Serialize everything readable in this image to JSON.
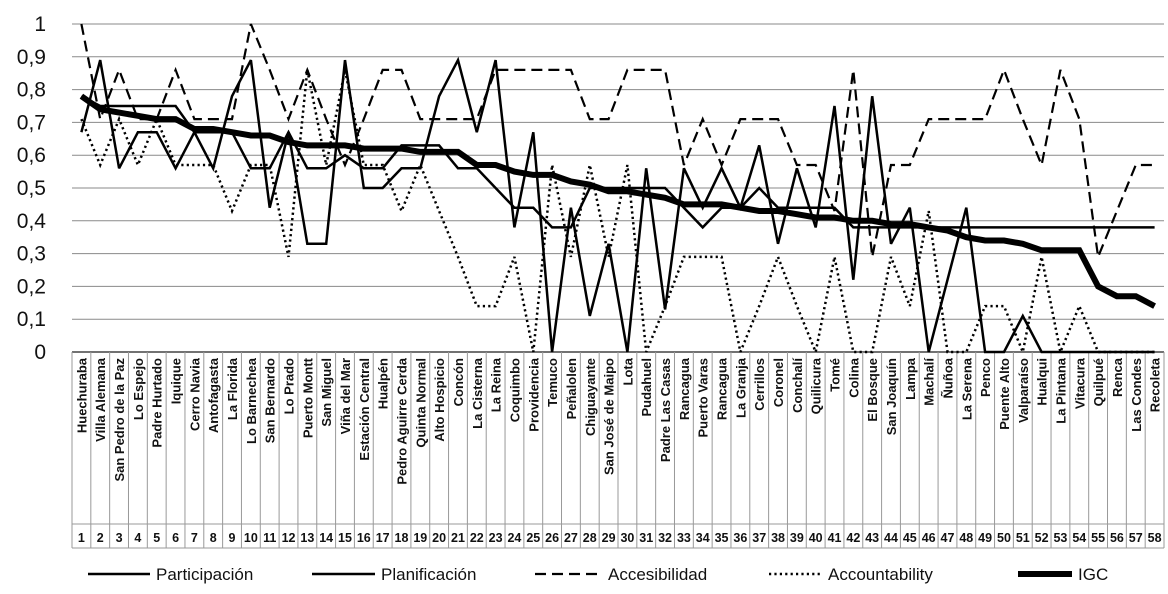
{
  "chart_data": {
    "type": "line",
    "title": "",
    "xlabel": "",
    "ylabel": "",
    "ylim": [
      0,
      1
    ],
    "y_ticks": [
      "0",
      "0,1",
      "0,2",
      "0,3",
      "0,4",
      "0,5",
      "0,6",
      "0,7",
      "0,8",
      "0,9",
      "1"
    ],
    "grid": true,
    "legend_position": "bottom",
    "categories": [
      "Huechuraba",
      "Villa Alemana",
      "San Pedro de la Paz",
      "Lo Espejo",
      "Padre Hurtado",
      "Iquique",
      "Cerro Navia",
      "Antofagasta",
      "La Florida",
      "Lo Barnechea",
      "San Bernardo",
      "Lo Prado",
      "Puerto Montt",
      "San Miguel",
      "Viña del Mar",
      "Estación Central",
      "Hualpén",
      "Pedro Aguirre Cerda",
      "Quinta Normal",
      "Alto Hospicio",
      "Concón",
      "La Cisterna",
      "La Reina",
      "Coquimbo",
      "Providencia",
      "Temuco",
      "Peñalolen",
      "Chiguayante",
      "San José de Maipo",
      "Lota",
      "Pudahuel",
      "Padre Las Casas",
      "Rancagua",
      "Puerto Varas",
      "Rancagua",
      "La Granja",
      "Cerrillos",
      "Coronel",
      "Conchalí",
      "Quilicura",
      "Tomé",
      "Colina",
      "El Bosque",
      "San Joaquín",
      "Lampa",
      "Machalí",
      "Ñuñoa",
      "La Serena",
      "Penco",
      "Puente Alto",
      "Valparaíso",
      "Hualqui",
      "La Pintana",
      "Vitacura",
      "Quilpué",
      "Renca",
      "Las Condes",
      "Recoleta"
    ],
    "indices": [
      "1",
      "2",
      "3",
      "4",
      "5",
      "6",
      "7",
      "8",
      "9",
      "10",
      "11",
      "12",
      "13",
      "14",
      "15",
      "16",
      "17",
      "18",
      "19",
      "20",
      "21",
      "22",
      "23",
      "24",
      "25",
      "26",
      "27",
      "28",
      "29",
      "30",
      "31",
      "32",
      "33",
      "34",
      "35",
      "36",
      "37",
      "38",
      "39",
      "40",
      "41",
      "42",
      "43",
      "44",
      "45",
      "46",
      "47",
      "48",
      "49",
      "50",
      "51",
      "52",
      "53",
      "54",
      "55",
      "56",
      "57",
      "58"
    ],
    "series": [
      {
        "name": "Participación",
        "style": "solid",
        "values": [
          0.78,
          0.75,
          0.75,
          0.75,
          0.75,
          0.75,
          0.67,
          0.67,
          0.67,
          0.56,
          0.56,
          0.67,
          0.56,
          0.56,
          0.6,
          0.56,
          0.56,
          0.63,
          0.63,
          0.63,
          0.56,
          0.56,
          0.5,
          0.44,
          0.44,
          0.38,
          0.38,
          0.5,
          0.5,
          0.5,
          0.5,
          0.5,
          0.44,
          0.38,
          0.44,
          0.44,
          0.5,
          0.44,
          0.44,
          0.44,
          0.44,
          0.38,
          0.38,
          0.38,
          0.38,
          0.38,
          0.38,
          0.38,
          0.38,
          0.38,
          0.38,
          0.38,
          0.38,
          0.38,
          0.38,
          0.38,
          0.38,
          0.38
        ]
      },
      {
        "name": "Planificación",
        "style": "solid",
        "values": [
          0.67,
          0.89,
          0.56,
          0.67,
          0.67,
          0.56,
          0.67,
          0.56,
          0.78,
          0.89,
          0.44,
          0.67,
          0.33,
          0.33,
          0.89,
          0.5,
          0.5,
          0.56,
          0.56,
          0.78,
          0.89,
          0.67,
          0.89,
          0.38,
          0.67,
          0.0,
          0.44,
          0.11,
          0.33,
          0.0,
          0.56,
          0.13,
          0.56,
          0.44,
          0.56,
          0.44,
          0.63,
          0.33,
          0.56,
          0.38,
          0.75,
          0.22,
          0.78,
          0.33,
          0.44,
          0.0,
          0.22,
          0.44,
          0.0,
          0.0,
          0.11,
          0.0,
          0.0,
          0.0,
          0.0,
          0.0,
          0.0,
          0.0
        ]
      },
      {
        "name": "Accesibilidad",
        "style": "dashed",
        "values": [
          1.0,
          0.71,
          0.86,
          0.71,
          0.71,
          0.86,
          0.71,
          0.71,
          0.71,
          1.0,
          0.86,
          0.71,
          0.86,
          0.71,
          0.57,
          0.71,
          0.86,
          0.86,
          0.71,
          0.71,
          0.71,
          0.71,
          0.86,
          0.86,
          0.86,
          0.86,
          0.86,
          0.71,
          0.71,
          0.86,
          0.86,
          0.86,
          0.57,
          0.71,
          0.57,
          0.71,
          0.71,
          0.71,
          0.57,
          0.57,
          0.43,
          0.86,
          0.29,
          0.57,
          0.57,
          0.71,
          0.71,
          0.71,
          0.71,
          0.86,
          0.71,
          0.57,
          0.86,
          0.71,
          0.29,
          0.43,
          0.57,
          0.57
        ]
      },
      {
        "name": "Accountability",
        "style": "dotted",
        "values": [
          0.71,
          0.57,
          0.71,
          0.57,
          0.71,
          0.57,
          0.57,
          0.57,
          0.43,
          0.57,
          0.57,
          0.29,
          0.86,
          0.57,
          0.86,
          0.57,
          0.57,
          0.43,
          0.57,
          0.43,
          0.29,
          0.14,
          0.14,
          0.29,
          0.0,
          0.57,
          0.29,
          0.57,
          0.29,
          0.57,
          0.0,
          0.14,
          0.29,
          0.29,
          0.29,
          0.0,
          0.14,
          0.29,
          0.14,
          0.0,
          0.29,
          0.0,
          0.0,
          0.29,
          0.14,
          0.43,
          0.0,
          0.0,
          0.14,
          0.14,
          0.0,
          0.29,
          0.0,
          0.14,
          0.0,
          0.0,
          0.0,
          0.0
        ]
      },
      {
        "name": "IGC",
        "style": "thick",
        "values": [
          0.78,
          0.74,
          0.73,
          0.72,
          0.71,
          0.71,
          0.68,
          0.68,
          0.67,
          0.66,
          0.66,
          0.64,
          0.63,
          0.63,
          0.63,
          0.62,
          0.62,
          0.62,
          0.61,
          0.61,
          0.61,
          0.57,
          0.57,
          0.55,
          0.54,
          0.54,
          0.52,
          0.51,
          0.49,
          0.49,
          0.48,
          0.47,
          0.45,
          0.45,
          0.45,
          0.44,
          0.43,
          0.43,
          0.42,
          0.41,
          0.41,
          0.4,
          0.4,
          0.39,
          0.39,
          0.38,
          0.37,
          0.35,
          0.34,
          0.34,
          0.33,
          0.31,
          0.31,
          0.31,
          0.2,
          0.17,
          0.17,
          0.14
        ]
      }
    ]
  }
}
